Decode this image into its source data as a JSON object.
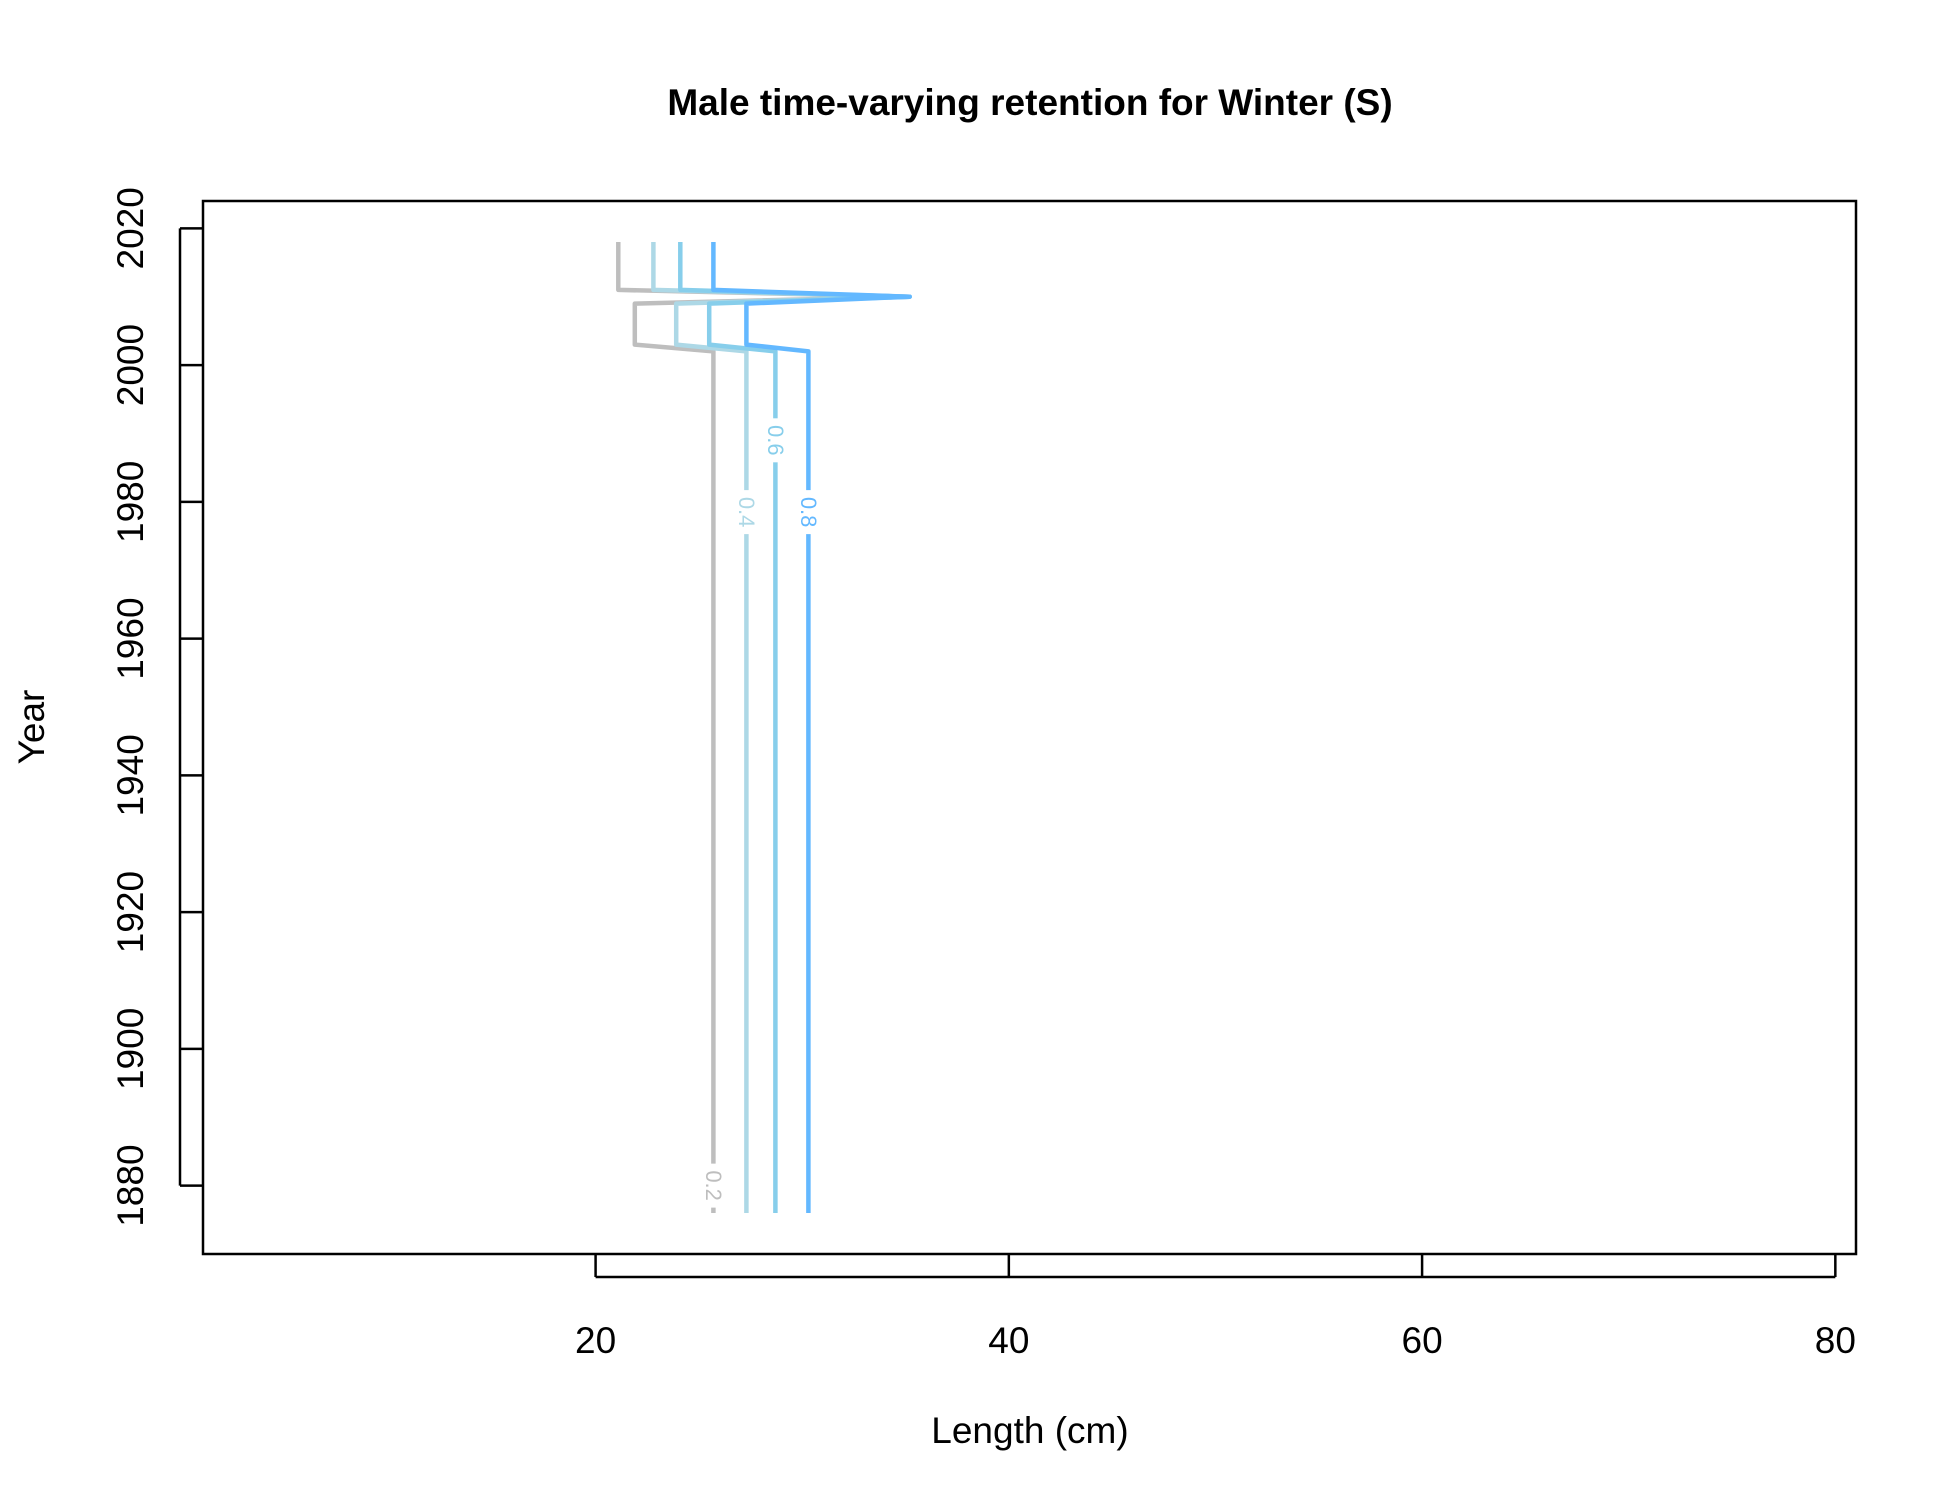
{
  "chart_data": {
    "type": "line",
    "title": "Male time-varying retention for Winter (S)",
    "xlabel": "Length (cm)",
    "ylabel": "Year",
    "xlim": [
      1,
      81
    ],
    "ylim": [
      1870,
      2024
    ],
    "xticks": [
      20,
      40,
      60,
      80
    ],
    "yticks": [
      1880,
      1900,
      1920,
      1940,
      1960,
      1980,
      2000,
      2020
    ],
    "xtick_labels": [
      "20",
      "40",
      "60",
      "80"
    ],
    "ytick_labels": [
      "1880",
      "1900",
      "1920",
      "1940",
      "1960",
      "1980",
      "2000",
      "2020"
    ],
    "grid": false,
    "legend": "none",
    "series": [
      {
        "level": 0.2,
        "label": "0.2",
        "color": "#bebebe",
        "points": [
          [
            25.7,
            1876
          ],
          [
            25.7,
            2002
          ],
          [
            21.9,
            2003
          ],
          [
            21.9,
            2009
          ],
          [
            35.2,
            2010
          ],
          [
            21.1,
            2011
          ],
          [
            21.1,
            2018
          ]
        ],
        "label_at": [
          25.7,
          1880
        ]
      },
      {
        "level": 0.4,
        "label": "0.4",
        "color": "#add8e6",
        "points": [
          [
            27.3,
            1876
          ],
          [
            27.3,
            2002
          ],
          [
            23.9,
            2003
          ],
          [
            23.9,
            2009
          ],
          [
            35.2,
            2010
          ],
          [
            22.8,
            2011
          ],
          [
            22.8,
            2018
          ]
        ],
        "label_at": [
          27.3,
          1978.5
        ]
      },
      {
        "level": 0.6,
        "label": "0.6",
        "color": "#87ceeb",
        "points": [
          [
            28.7,
            1876
          ],
          [
            28.7,
            2002
          ],
          [
            25.5,
            2003
          ],
          [
            25.5,
            2009
          ],
          [
            35.2,
            2010
          ],
          [
            24.1,
            2011
          ],
          [
            24.1,
            2018
          ]
        ],
        "label_at": [
          28.7,
          1989
        ]
      },
      {
        "level": 0.8,
        "label": "0.8",
        "color": "#63b8ff",
        "points": [
          [
            30.3,
            1876
          ],
          [
            30.3,
            2002
          ],
          [
            27.3,
            2003
          ],
          [
            27.3,
            2009
          ],
          [
            35.2,
            2010
          ],
          [
            25.7,
            2011
          ],
          [
            25.7,
            2018
          ]
        ],
        "label_at": [
          30.3,
          1978.5
        ]
      }
    ]
  }
}
